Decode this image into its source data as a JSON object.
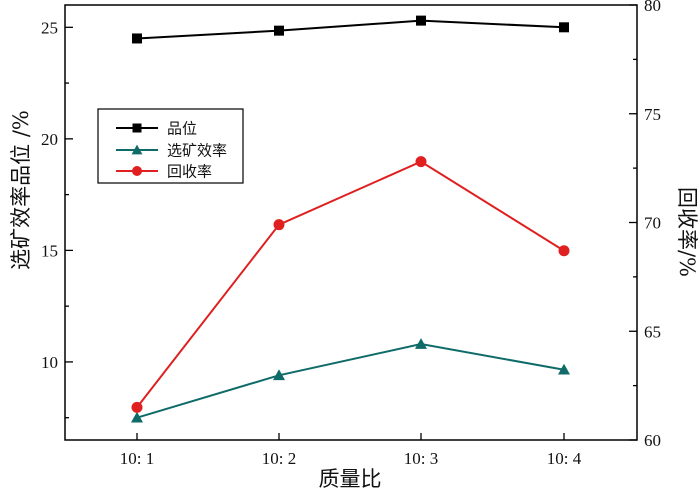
{
  "chart_data": {
    "type": "line",
    "categories": [
      "10:  1",
      "10:  2",
      "10:  3",
      "10:  4"
    ],
    "xlabel": "质量比",
    "ylabel_left": "选矿效率品位 /%",
    "ylabel_right": "回收率/%",
    "ylim_left": [
      6.5,
      26
    ],
    "ylim_right": [
      60,
      80
    ],
    "yticks_left": [
      10,
      15,
      20,
      25
    ],
    "yticks_right": [
      60,
      65,
      70,
      75,
      80
    ],
    "grid": false,
    "legend_position": "upper-left",
    "series": [
      {
        "name": "品位",
        "axis": "left",
        "color": "#000000",
        "marker": "square",
        "values": [
          24.5,
          24.85,
          25.3,
          25.0
        ]
      },
      {
        "name": "选矿效率",
        "axis": "left",
        "color": "#0f6b68",
        "marker": "triangle",
        "values": [
          7.5,
          9.4,
          10.8,
          9.65
        ]
      },
      {
        "name": "回收率",
        "axis": "right",
        "color": "#e02020",
        "marker": "circle",
        "values": [
          61.5,
          69.9,
          72.8,
          68.7
        ]
      }
    ]
  }
}
